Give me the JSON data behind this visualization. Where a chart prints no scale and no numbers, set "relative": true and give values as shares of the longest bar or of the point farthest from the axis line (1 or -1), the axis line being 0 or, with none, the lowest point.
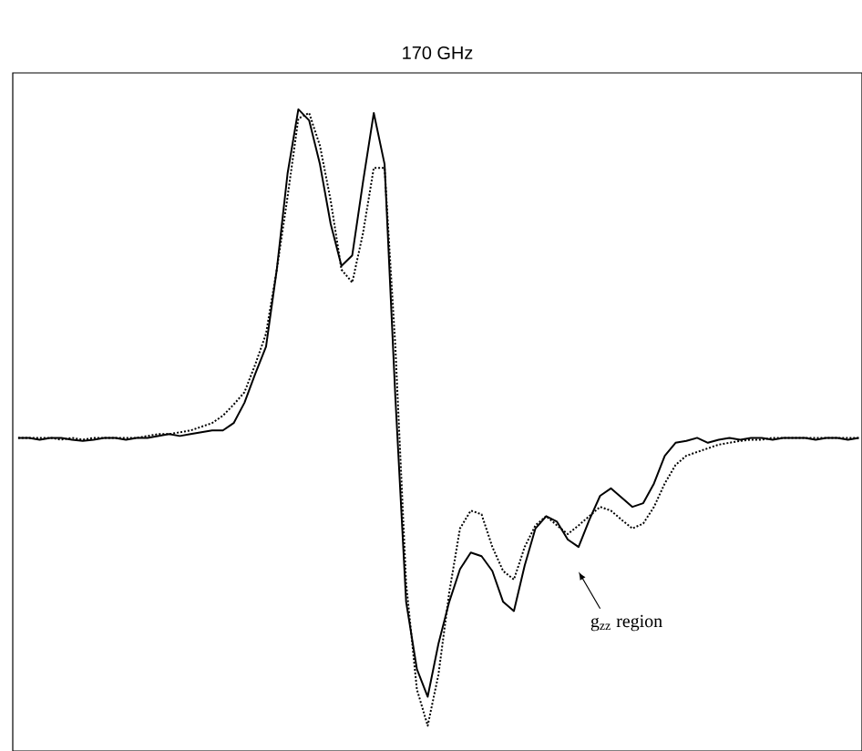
{
  "chart_data": {
    "type": "line",
    "title": "170 GHz",
    "relative": true,
    "annotations": [
      "g$_{zz}$ region"
    ],
    "categories": [
      null,
      null,
      null,
      null,
      null,
      null,
      null,
      null,
      null,
      null,
      null,
      null,
      null,
      null,
      null,
      null,
      null,
      null,
      null,
      null,
      null,
      null,
      null,
      null,
      null,
      null,
      null,
      null,
      null,
      null,
      null,
      null,
      null,
      null,
      null,
      null,
      null,
      null,
      null,
      null,
      null,
      null,
      null,
      null,
      null,
      null,
      null,
      null,
      null,
      null,
      null,
      null,
      null,
      null,
      null,
      null,
      null,
      null,
      null,
      null,
      null,
      null,
      null,
      null,
      null,
      null,
      null,
      null,
      null,
      null,
      null,
      null,
      null,
      null,
      null,
      null,
      null,
      null,
      null
    ],
    "series": [
      {
        "color": "#000000",
        "line_style": "solid",
        "values": [
          0.467,
          0.467,
          0.464,
          0.467,
          0.467,
          0.464,
          0.462,
          0.464,
          0.467,
          0.467,
          0.464,
          0.467,
          0.467,
          0.47,
          0.473,
          0.47,
          0.473,
          0.476,
          0.479,
          0.479,
          0.491,
          0.524,
          0.571,
          0.615,
          0.74,
          0.896,
          1,
          0.982,
          0.911,
          0.814,
          0.746,
          0.763,
          0.882,
          0.994,
          0.911,
          0.533,
          0.201,
          0.092,
          0.047,
          0.133,
          0.201,
          0.254,
          0.281,
          0.275,
          0.251,
          0.201,
          0.186,
          0.26,
          0.32,
          0.34,
          0.331,
          0.302,
          0.29,
          0.334,
          0.373,
          0.385,
          0.37,
          0.355,
          0.361,
          0.393,
          0.438,
          0.459,
          0.462,
          0.467,
          0.459,
          0.464,
          0.467,
          0.464,
          0.467,
          0.467,
          0.464,
          0.467,
          0.467,
          0.467,
          0.464,
          0.467,
          0.467,
          0.464,
          0.467
        ]
      },
      {
        "color": "#000000",
        "line_style": "dotted",
        "values": [
          0.467,
          0.467,
          0.467,
          0.467,
          0.464,
          0.467,
          0.464,
          0.467,
          0.467,
          0.467,
          0.467,
          0.467,
          0.47,
          0.473,
          0.473,
          0.476,
          0.479,
          0.485,
          0.491,
          0.503,
          0.521,
          0.541,
          0.586,
          0.636,
          0.74,
          0.858,
          0.985,
          0.994,
          0.941,
          0.852,
          0.74,
          0.719,
          0.799,
          0.905,
          0.905,
          0.615,
          0.231,
          0.059,
          0,
          0.083,
          0.216,
          0.32,
          0.349,
          0.343,
          0.29,
          0.251,
          0.237,
          0.29,
          0.325,
          0.34,
          0.325,
          0.311,
          0.325,
          0.34,
          0.355,
          0.349,
          0.334,
          0.32,
          0.328,
          0.355,
          0.393,
          0.423,
          0.438,
          0.444,
          0.45,
          0.456,
          0.459,
          0.462,
          0.464,
          0.464,
          0.467,
          0.467,
          0.467,
          0.467,
          0.467,
          0.467,
          0.467,
          0.467,
          0.467
        ]
      }
    ]
  }
}
